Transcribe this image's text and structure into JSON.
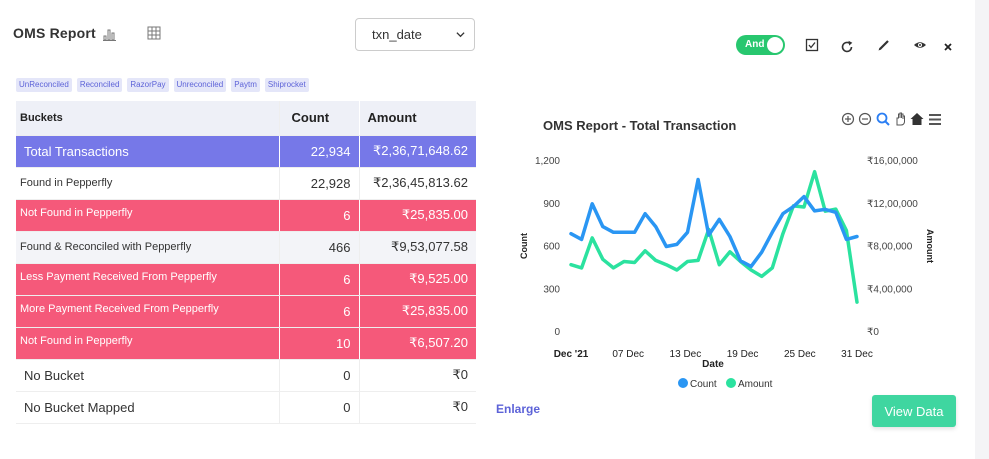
{
  "header": {
    "title": "OMS Report",
    "date_field": "txn_date"
  },
  "tags": [
    "UnReconciled",
    "Reconciled",
    "RazorPay",
    "Unreconciled",
    "Paytm",
    "Shiprocket"
  ],
  "table": {
    "headers": [
      "Buckets",
      "Count",
      "Amount"
    ],
    "rows": [
      {
        "bucket": "Total Transactions",
        "count": "22,934",
        "amount": "₹2,36,71,648.62",
        "style": "blue"
      },
      {
        "bucket": "Found in  Pepperfly",
        "count": "22,928",
        "amount": "₹2,36,45,813.62",
        "style": "plain"
      },
      {
        "bucket": "Not Found in Pepperfly",
        "count": "6",
        "amount": "₹25,835.00",
        "style": "pink"
      },
      {
        "bucket": "Found & Reconciled with Pepperfly",
        "count": "466",
        "amount": "₹9,53,077.58",
        "style": "gray"
      },
      {
        "bucket": "Less Payment Received From Pepperfly",
        "count": "6",
        "amount": "₹9,525.00",
        "style": "pink"
      },
      {
        "bucket": "More Payment Received From Pepperfly",
        "count": "6",
        "amount": "₹25,835.00",
        "style": "pink"
      },
      {
        "bucket": "Not Found in Pepperfly",
        "count": "10",
        "amount": "₹6,507.20",
        "style": "pink"
      },
      {
        "bucket": "No Bucket",
        "count": "0",
        "amount": "₹0",
        "style": "big"
      },
      {
        "bucket": "No Bucket Mapped",
        "count": "0",
        "amount": "₹0",
        "style": "big"
      }
    ]
  },
  "controls": {
    "toggle_label": "And",
    "toggle_on": true,
    "icons": [
      "checkbox-icon",
      "refresh-icon",
      "pencil-icon",
      "eye-icon",
      "close-icon"
    ]
  },
  "actions": {
    "enlarge": "Enlarge",
    "view_data": "View Data"
  },
  "colors": {
    "primary": "#7678e8",
    "alert": "#f5597a",
    "count_series": "#2a96f3",
    "amount_series": "#2be29f",
    "toggle": "#28c76f",
    "button": "#3fd6a0"
  },
  "chart_data": {
    "type": "line",
    "title": "OMS Report - Total Transaction",
    "xlabel": "Date",
    "ylabel": "Count",
    "y2label": "Amount",
    "x_tick_labels": [
      "Dec '21",
      "07 Dec",
      "13 Dec",
      "19 Dec",
      "25 Dec",
      "31 Dec"
    ],
    "ylim": [
      0,
      1200
    ],
    "y_ticks": [
      "0",
      "300",
      "600",
      "900",
      "1,200"
    ],
    "y2lim": [
      0,
      1600000
    ],
    "y2_ticks": [
      "₹0",
      "₹4,00,000",
      "₹8,00,000",
      "₹12,00,000",
      "₹16,00,000"
    ],
    "series": [
      {
        "name": "Count",
        "axis": "left",
        "values": [
          690,
          650,
          900,
          740,
          700,
          700,
          700,
          830,
          740,
          600,
          615,
          700,
          1070,
          680,
          790,
          670,
          500,
          460,
          560,
          700,
          830,
          880,
          950,
          850,
          860,
          840,
          650,
          670
        ]
      },
      {
        "name": "Amount",
        "axis": "right",
        "values": [
          630000,
          600000,
          880000,
          680000,
          600000,
          660000,
          650000,
          760000,
          670000,
          630000,
          580000,
          660000,
          670000,
          960000,
          630000,
          750000,
          660000,
          580000,
          520000,
          600000,
          920000,
          1180000,
          1170000,
          1500000,
          1130000,
          1150000,
          950000,
          280000
        ]
      }
    ],
    "legend": [
      "Count",
      "Amount"
    ],
    "legend_position": "bottom",
    "grid": false
  }
}
